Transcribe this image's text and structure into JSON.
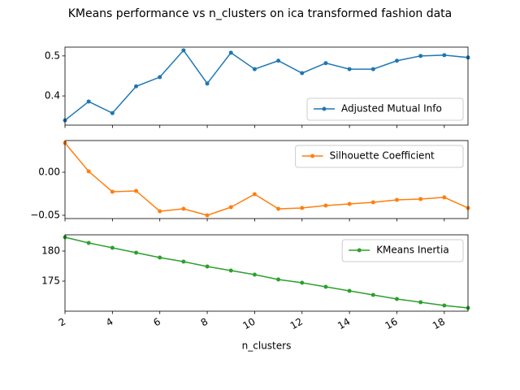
{
  "title": "KMeans performance vs n_clusters on ica transformed fashion data",
  "chart_data": [
    {
      "type": "line",
      "x": [
        2,
        3,
        4,
        5,
        6,
        7,
        8,
        9,
        10,
        11,
        12,
        13,
        14,
        15,
        16,
        17,
        18,
        19
      ],
      "series": [
        {
          "name": "Adjusted Mutual Info",
          "color": "#1f77b4",
          "values": [
            0.339,
            0.386,
            0.357,
            0.424,
            0.447,
            0.514,
            0.431,
            0.508,
            0.467,
            0.488,
            0.457,
            0.482,
            0.467,
            0.467,
            0.488,
            0.5,
            0.502,
            0.496
          ]
        }
      ],
      "xlim": [
        2,
        19
      ],
      "ylim": [
        0.327,
        0.522
      ],
      "yticks": [
        {
          "value": 0.4,
          "label": "0.4"
        },
        {
          "value": 0.5,
          "label": "0.5"
        }
      ],
      "legend": "lower right"
    },
    {
      "type": "line",
      "x": [
        2,
        3,
        4,
        5,
        6,
        7,
        8,
        9,
        10,
        11,
        12,
        13,
        14,
        15,
        16,
        17,
        18,
        19
      ],
      "series": [
        {
          "name": "Silhouette Coefficient",
          "color": "#ff7f0e",
          "values": [
            0.034,
            0.001,
            -0.0226,
            -0.0217,
            -0.0453,
            -0.0425,
            -0.05,
            -0.0406,
            -0.0255,
            -0.0425,
            -0.0415,
            -0.0387,
            -0.0368,
            -0.0349,
            -0.0321,
            -0.0311,
            -0.0292,
            -0.0415
          ]
        }
      ],
      "xlim": [
        2,
        19
      ],
      "ylim": [
        -0.0538,
        0.0368
      ],
      "yticks": [
        {
          "value": -0.05,
          "label": "−0.05"
        },
        {
          "value": 0,
          "label": "0.00"
        }
      ],
      "legend": "upper right"
    },
    {
      "type": "line",
      "x": [
        2,
        3,
        4,
        5,
        6,
        7,
        8,
        9,
        10,
        11,
        12,
        13,
        14,
        15,
        16,
        17,
        18,
        19
      ],
      "series": [
        {
          "name": "KMeans Inertia",
          "color": "#2ca02c",
          "values": [
            182.3,
            181.35,
            180.54,
            179.73,
            178.92,
            178.24,
            177.43,
            176.76,
            176.08,
            175.27,
            174.73,
            174.05,
            173.38,
            172.7,
            172.03,
            171.49,
            170.95,
            170.54
          ]
        }
      ],
      "xlim": [
        2,
        19
      ],
      "ylim": [
        170.0,
        182.7
      ],
      "yticks": [
        175,
        180
      ],
      "xticks": [
        2,
        4,
        6,
        8,
        10,
        12,
        14,
        16,
        18
      ],
      "xlabel": "n_clusters",
      "legend": "upper right"
    }
  ]
}
